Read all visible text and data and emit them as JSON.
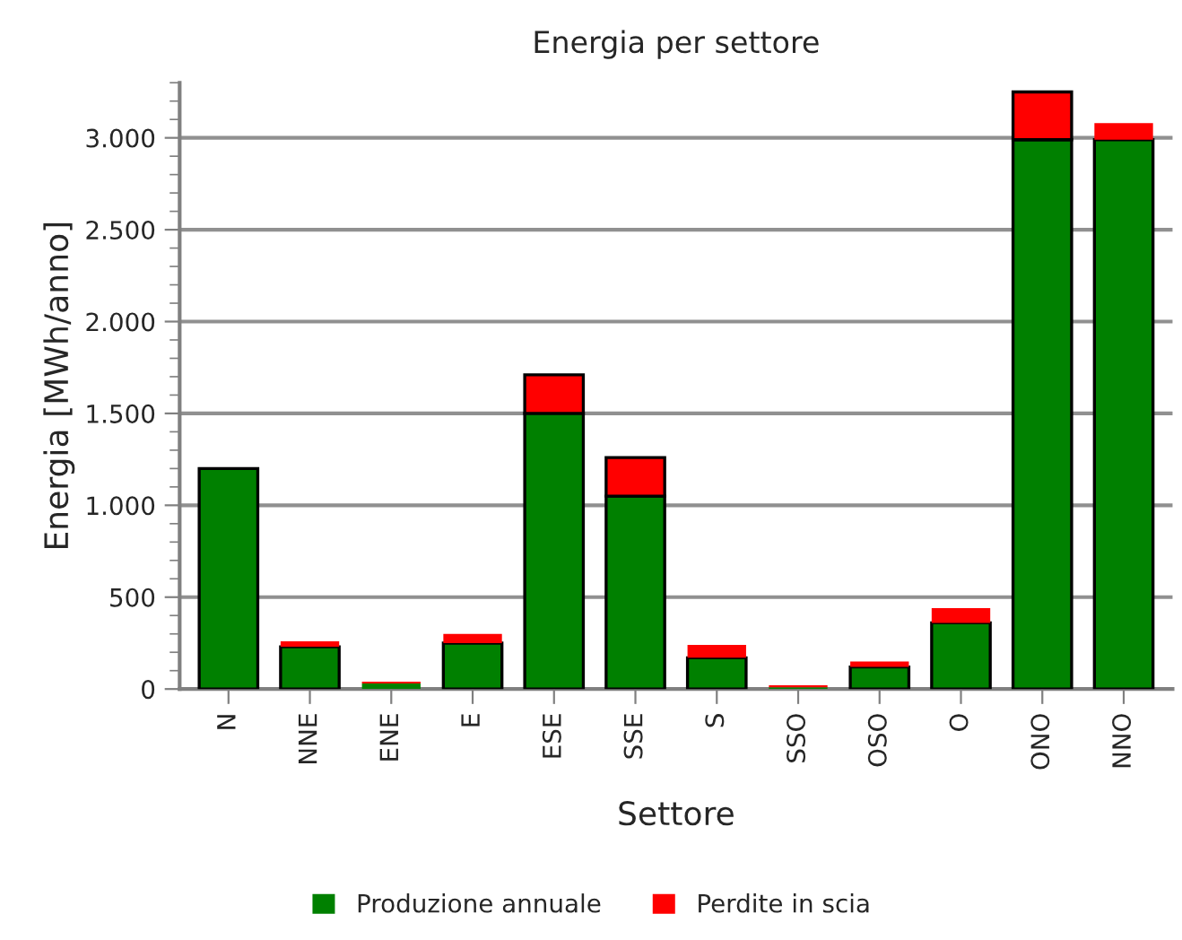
{
  "chart_data": {
    "type": "bar",
    "title": "Energia per settore",
    "xlabel": "Settore",
    "ylabel": "Energia [MWh/anno]",
    "categories": [
      "N",
      "NNE",
      "ENE",
      "E",
      "ESE",
      "SSE",
      "S",
      "SSO",
      "OSO",
      "O",
      "ONO",
      "NNO"
    ],
    "stacked": true,
    "series": [
      {
        "name": "Produzione annuale",
        "color": "#008000",
        "values": [
          1200,
          230,
          30,
          250,
          1500,
          1050,
          170,
          10,
          120,
          360,
          2990,
          2990
        ]
      },
      {
        "name": "Perdite in scia",
        "color": "#ff0000",
        "values": [
          null,
          30,
          10,
          50,
          210,
          210,
          70,
          10,
          30,
          80,
          260,
          90
        ]
      }
    ],
    "ylim": [
      0,
      3300
    ],
    "yticks": [
      0,
      500,
      {
        "value": 1000,
        "label": "1.000"
      },
      {
        "value": 1500,
        "label": "1.500"
      },
      {
        "value": 2000,
        "label": "2.000"
      },
      {
        "value": 2500,
        "label": "2.500"
      },
      {
        "value": 3000,
        "label": "3.000"
      }
    ],
    "grid": "y",
    "legend": "bottom"
  }
}
